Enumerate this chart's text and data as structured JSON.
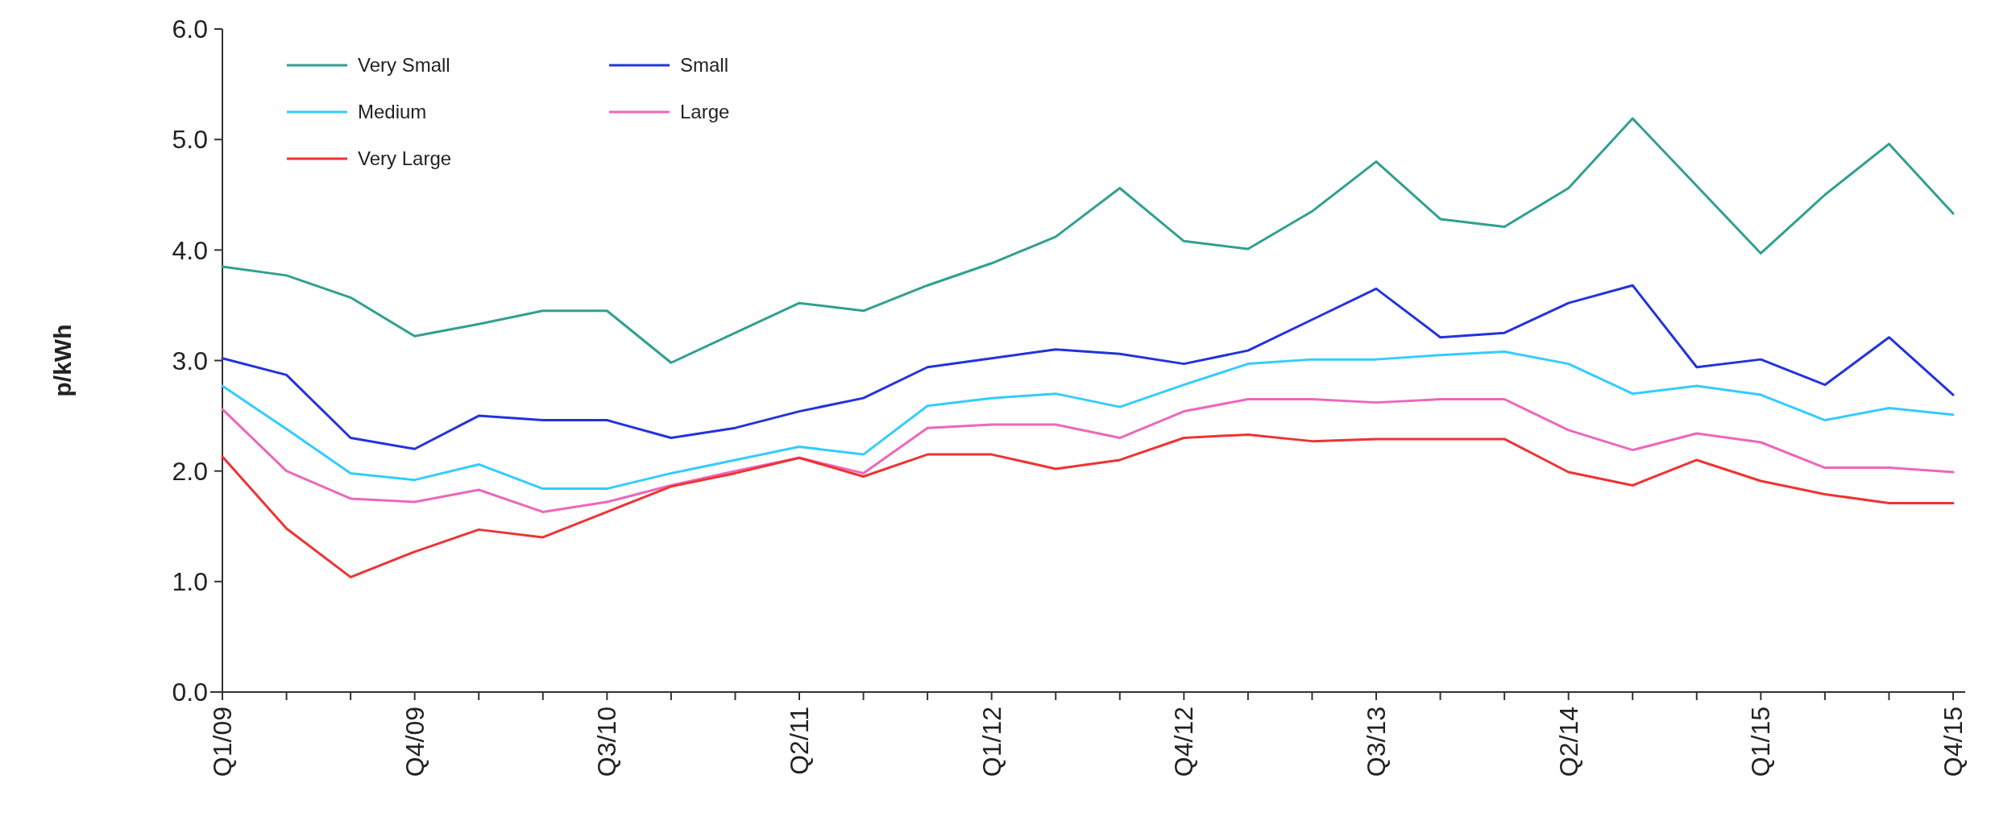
{
  "chart_data": {
    "type": "line",
    "ylabel": "p/kWh",
    "categories": [
      "Q1/09",
      null,
      null,
      "Q4/09",
      null,
      null,
      "Q3/10",
      null,
      null,
      "Q2/11",
      null,
      null,
      "Q1/12",
      null,
      null,
      "Q4/12",
      null,
      null,
      "Q3/13",
      null,
      null,
      "Q2/14",
      null,
      null,
      "Q1/15",
      null,
      null,
      "Q4/15"
    ],
    "ylim": [
      0,
      6
    ],
    "yticks": [
      {
        "value": 0,
        "label": "0.0"
      },
      {
        "value": 1,
        "label": "1.0"
      },
      {
        "value": 2,
        "label": "2.0"
      },
      {
        "value": 3,
        "label": "3.0"
      },
      {
        "value": 4,
        "label": "4.0"
      },
      {
        "value": 5,
        "label": "5.0"
      },
      {
        "value": 6,
        "label": "6.0"
      }
    ],
    "grid": false,
    "legend": "top left",
    "marker": "none",
    "line_style": "solid",
    "series": [
      {
        "name": "Very Small",
        "color": "#30a090",
        "values": [
          3.85,
          3.77,
          3.57,
          3.22,
          3.33,
          3.45,
          3.45,
          2.98,
          3.25,
          3.52,
          3.45,
          3.68,
          3.88,
          4.12,
          4.56,
          4.08,
          4.01,
          4.35,
          4.8,
          4.28,
          4.21,
          4.56,
          5.19,
          4.58,
          3.97,
          4.5,
          4.96,
          4.33
        ]
      },
      {
        "name": "Small",
        "color": "#2233dd",
        "values": [
          3.02,
          2.87,
          2.3,
          2.2,
          2.5,
          2.46,
          2.46,
          2.3,
          2.39,
          2.54,
          2.66,
          2.94,
          3.02,
          3.1,
          3.06,
          2.97,
          3.09,
          3.37,
          3.65,
          3.21,
          3.25,
          3.52,
          3.68,
          2.94,
          3.01,
          2.78,
          3.21,
          2.69
        ]
      },
      {
        "name": "Medium",
        "color": "#33ccff",
        "values": [
          2.77,
          2.38,
          1.98,
          1.92,
          2.06,
          1.84,
          1.84,
          1.98,
          2.1,
          2.22,
          2.15,
          2.59,
          2.66,
          2.7,
          2.58,
          2.78,
          2.97,
          3.01,
          3.01,
          3.05,
          3.08,
          2.97,
          2.7,
          2.77,
          2.69,
          2.46,
          2.57,
          2.51
        ]
      },
      {
        "name": "Large",
        "color": "#ee66bb",
        "values": [
          2.56,
          2.0,
          1.75,
          1.72,
          1.83,
          1.63,
          1.72,
          1.87,
          2.0,
          2.12,
          1.98,
          2.39,
          2.42,
          2.42,
          2.3,
          2.54,
          2.65,
          2.65,
          2.62,
          2.65,
          2.65,
          2.37,
          2.19,
          2.34,
          2.26,
          2.03,
          2.03,
          1.99
        ]
      },
      {
        "name": "Very Large",
        "color": "#ee3333",
        "values": [
          2.13,
          1.48,
          1.04,
          1.27,
          1.47,
          1.4,
          1.63,
          1.86,
          1.98,
          2.12,
          1.95,
          2.15,
          2.15,
          2.02,
          2.1,
          2.3,
          2.33,
          2.27,
          2.29,
          2.29,
          2.29,
          1.99,
          1.87,
          2.1,
          1.91,
          1.79,
          1.71,
          1.71
        ]
      }
    ]
  }
}
